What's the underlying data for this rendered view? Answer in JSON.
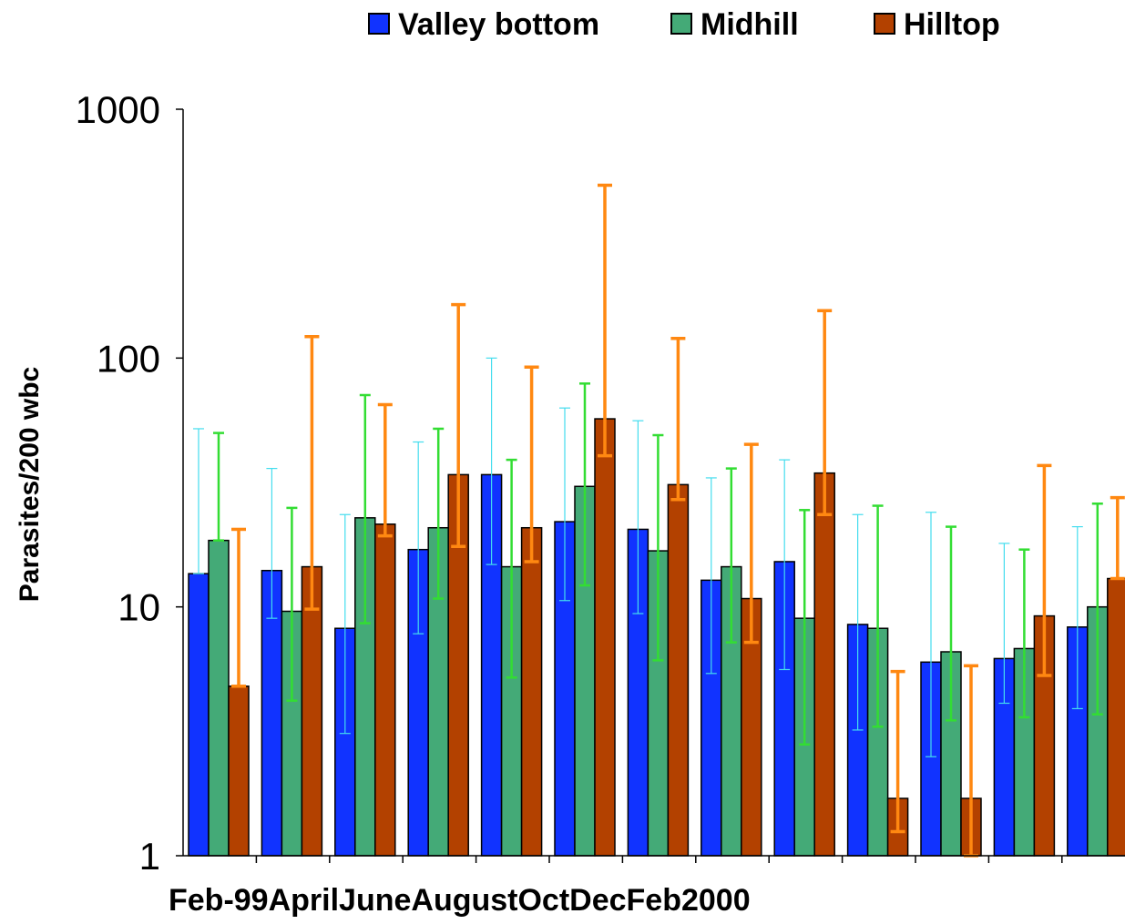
{
  "chart_data": {
    "type": "bar",
    "y_scale": "log",
    "ylim": [
      1,
      1000
    ],
    "ylabel": "Parasites/200 wbc",
    "y_ticks": [
      "1",
      "10",
      "100",
      "1000"
    ],
    "x_label_text": "Feb-99AprilJuneAugustOctDecFeb2000",
    "categories": [
      "",
      "",
      "",
      "",
      "",
      "",
      "",
      "",
      "",
      "",
      "",
      "",
      ""
    ],
    "legend_position": "top",
    "grid": false,
    "series": [
      {
        "name": "Valley bottom",
        "color": "#1133ff",
        "error_color": "#44ddee",
        "values": [
          13.6,
          14,
          8.2,
          17,
          34,
          22,
          20.5,
          12.8,
          15.2,
          8.5,
          6,
          6.2,
          8.3
        ],
        "error_low": [
          13.6,
          9,
          3.1,
          7.8,
          14.8,
          10.6,
          9.4,
          5.4,
          5.6,
          3.2,
          2.5,
          4.1,
          3.9
        ],
        "error_high": [
          52,
          36,
          23.5,
          46,
          100,
          63,
          56,
          33,
          39,
          23.5,
          24,
          18,
          21
        ]
      },
      {
        "name": "Midhill",
        "color": "#44aa77",
        "error_color": "#33dd33",
        "values": [
          18.5,
          9.6,
          22.8,
          20.8,
          14.5,
          30.5,
          16.8,
          14.5,
          9,
          8.2,
          6.6,
          6.8,
          10
        ],
        "error_low": [
          18.5,
          4.2,
          8.6,
          10.8,
          5.2,
          12.2,
          6.1,
          7.2,
          2.8,
          3.3,
          3.5,
          3.6,
          3.7
        ],
        "error_high": [
          50,
          25,
          71,
          52,
          39,
          79,
          49,
          36,
          24.5,
          25.5,
          21,
          17,
          26
        ]
      },
      {
        "name": "Hilltop",
        "color": "#b34100",
        "error_color": "#ff8811",
        "values": [
          4.8,
          14.5,
          21.5,
          34,
          20.8,
          57,
          31,
          10.8,
          34.5,
          1.7,
          1.7,
          9.2,
          13
        ],
        "error_low": [
          4.8,
          9.8,
          19.3,
          17.5,
          15.2,
          40.5,
          27,
          7.2,
          23.5,
          1.25,
          1,
          5.3,
          13
        ],
        "error_high": [
          20.5,
          122,
          65,
          164,
          92,
          495,
          120,
          45,
          155,
          5.5,
          5.8,
          37,
          27.5
        ]
      }
    ]
  }
}
